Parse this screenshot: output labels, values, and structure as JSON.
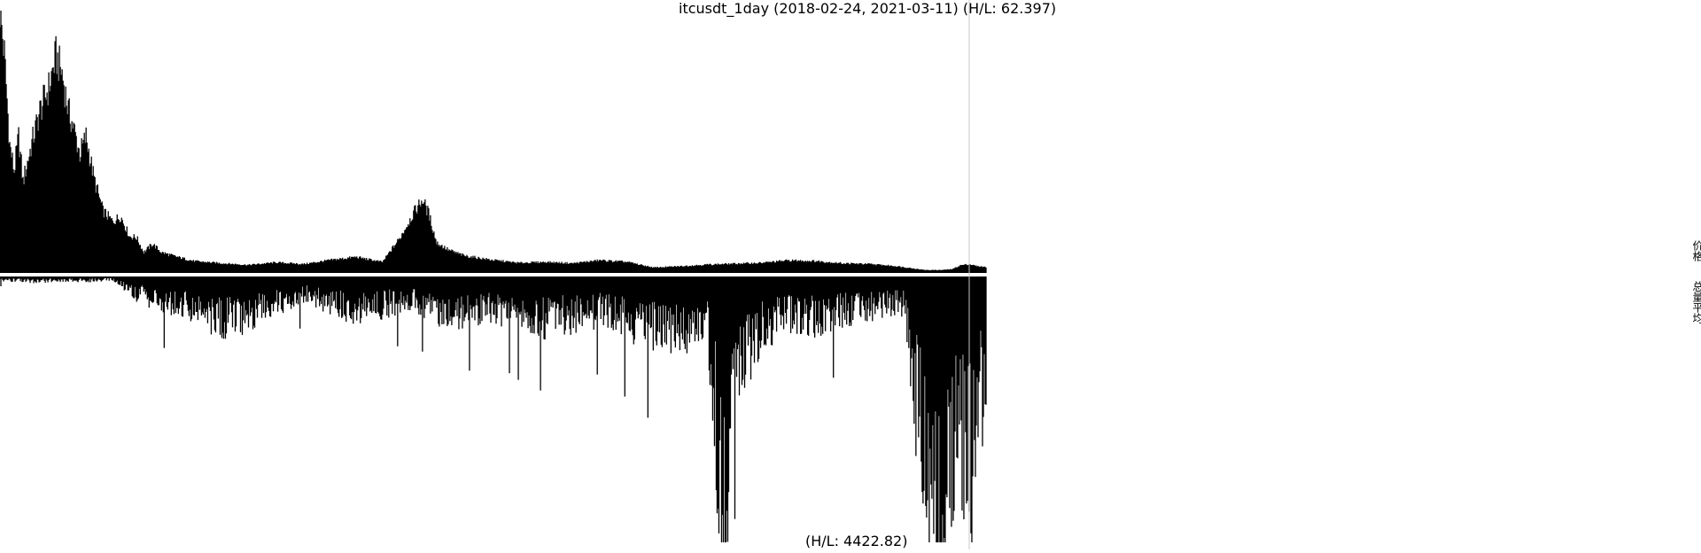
{
  "title": "itcusdt_1day (2018-02-24, 2021-03-11) (H/L: 62.397)",
  "low_label": "(H/L: 4422.82)",
  "side_labels": {
    "price": "价格",
    "volume": "总量平均"
  },
  "colors": {
    "bars": "#000000",
    "background": "#ffffff",
    "divider": "#ffffff",
    "cursor": "#c8c8c8"
  },
  "chart_data": [
    {
      "type": "area",
      "title": "itcusdt_1day (2018-02-24, 2021-03-11) (H/L: 62.397)",
      "xlabel": "",
      "ylabel": "价格",
      "x_range": [
        "2018-02-24",
        "2021-03-11"
      ],
      "ylim": [
        0,
        62.397
      ],
      "grid": false,
      "series": [
        {
          "name": "价格",
          "x": [
            "2018-02-24",
            "2018-03-01",
            "2018-03-07",
            "2018-03-12",
            "2018-03-17",
            "2018-03-22",
            "2018-04-01",
            "2018-04-10",
            "2018-04-20",
            "2018-04-28",
            "2018-05-05",
            "2018-05-12",
            "2018-05-18",
            "2018-05-25",
            "2018-06-01",
            "2018-06-10",
            "2018-06-20",
            "2018-07-01",
            "2018-07-10",
            "2018-07-20",
            "2018-07-28",
            "2018-08-05",
            "2018-08-15",
            "2018-08-25",
            "2018-09-10",
            "2018-10-01",
            "2018-11-01",
            "2018-12-01",
            "2019-01-01",
            "2019-02-01",
            "2019-03-01",
            "2019-04-01",
            "2019-05-01",
            "2019-05-20",
            "2019-06-05",
            "2019-06-15",
            "2019-06-22",
            "2019-07-01",
            "2019-07-15",
            "2019-08-01",
            "2019-09-01",
            "2019-10-01",
            "2019-11-01",
            "2019-12-01",
            "2020-01-01",
            "2020-02-01",
            "2020-03-01",
            "2020-04-01",
            "2020-05-01",
            "2020-06-01",
            "2020-07-01",
            "2020-08-01",
            "2020-09-01",
            "2020-10-01",
            "2020-11-01",
            "2020-12-01",
            "2021-01-01",
            "2021-01-20",
            "2021-02-01",
            "2021-02-10",
            "2021-02-20",
            "2021-03-01",
            "2021-03-11"
          ],
          "values": [
            62.4,
            52,
            30.6,
            24.2,
            32.4,
            21.7,
            31,
            38.6,
            44.1,
            51.6,
            47.5,
            38.6,
            34.5,
            28.3,
            32.4,
            22.4,
            14.8,
            12.2,
            13.5,
            8.7,
            8.4,
            4.9,
            6.9,
            4.9,
            3.9,
            2.8,
            2.3,
            1.9,
            2.5,
            2.1,
            3,
            3.8,
            2.6,
            8.1,
            14.2,
            17.5,
            14.2,
            7.2,
            5.4,
            4.1,
            3.1,
            2.4,
            2.6,
            2.3,
            3,
            2.6,
            1.3,
            1.6,
            2,
            2.2,
            2.4,
            3,
            2.8,
            2.3,
            2.1,
            1.6,
            0.7,
            0.7,
            0.9,
            1.8,
            2.1,
            1.6,
            1.4
          ]
        }
      ]
    },
    {
      "type": "bar",
      "title": "",
      "xlabel": "",
      "ylabel": "总量平均",
      "x_range": [
        "2018-02-24",
        "2021-03-11"
      ],
      "ylim": [
        0,
        4422.82
      ],
      "grid": false,
      "orientation": "downward",
      "series": [
        {
          "name": "总量平均",
          "x": [
            "2018-02-24",
            "2018-04-01",
            "2018-05-01",
            "2018-06-01",
            "2018-07-01",
            "2018-08-01",
            "2018-09-01",
            "2018-10-01",
            "2018-11-01",
            "2018-12-01",
            "2019-01-01",
            "2019-02-01",
            "2019-03-01",
            "2019-04-01",
            "2019-05-01",
            "2019-06-01",
            "2019-07-01",
            "2019-08-01",
            "2019-09-01",
            "2019-10-01",
            "2019-11-01",
            "2019-12-01",
            "2020-01-01",
            "2020-02-01",
            "2020-03-01",
            "2020-04-01",
            "2020-05-01",
            "2020-05-20",
            "2020-06-01",
            "2020-06-15",
            "2020-07-01",
            "2020-08-01",
            "2020-09-01",
            "2020-10-01",
            "2020-11-01",
            "2020-12-01",
            "2020-12-10",
            "2020-12-20",
            "2021-01-01",
            "2021-01-10",
            "2021-01-20",
            "2021-02-01",
            "2021-02-10",
            "2021-02-20",
            "2021-03-01",
            "2021-03-11"
          ],
          "values": [
            60,
            80,
            60,
            70,
            50,
            320,
            460,
            520,
            780,
            620,
            460,
            300,
            440,
            560,
            500,
            380,
            560,
            600,
            520,
            640,
            720,
            650,
            600,
            760,
            900,
            980,
            700,
            4100,
            1500,
            1250,
            900,
            640,
            700,
            580,
            520,
            440,
            520,
            1850,
            2900,
            3500,
            4400,
            3000,
            2500,
            3300,
            2100,
            1800
          ]
        }
      ]
    }
  ]
}
